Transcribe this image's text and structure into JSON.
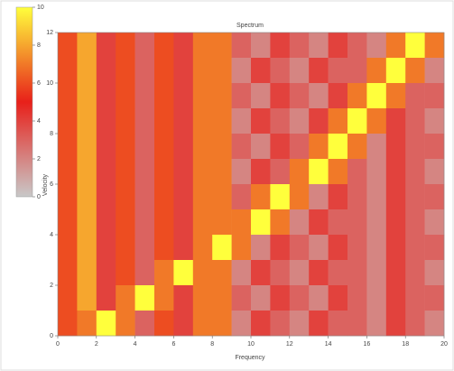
{
  "chart_data": {
    "type": "heatmap",
    "title": "Spectrum",
    "x_label": "Frequency",
    "y_label": "Velocity",
    "xlim": [
      0,
      20
    ],
    "ylim": [
      0,
      12
    ],
    "xticks": [
      0,
      2,
      4,
      6,
      8,
      10,
      12,
      14,
      16,
      18,
      20
    ],
    "yticks": [
      0,
      2,
      4,
      6,
      8,
      10,
      12
    ],
    "zlim": [
      0,
      10
    ],
    "zticks": [
      0,
      2,
      4,
      6,
      8,
      10
    ],
    "colormap": [
      "#c8c8c8",
      "#e8201a",
      "#ffff3c"
    ],
    "z": [
      [
        6,
        8,
        4,
        6,
        3,
        6,
        4,
        7,
        7,
        3,
        2,
        4,
        3,
        2,
        4,
        3,
        2,
        7,
        10,
        7
      ],
      [
        6,
        8,
        4,
        6,
        3,
        6,
        4,
        7,
        7,
        2,
        4,
        3,
        2,
        4,
        3,
        3,
        7,
        10,
        7,
        2
      ],
      [
        6,
        8,
        4,
        6,
        3,
        6,
        4,
        7,
        7,
        3,
        2,
        4,
        3,
        2,
        4,
        7,
        10,
        7,
        3,
        3
      ],
      [
        6,
        8,
        4,
        6,
        3,
        6,
        4,
        7,
        7,
        2,
        4,
        3,
        2,
        4,
        7,
        10,
        7,
        4,
        3,
        2
      ],
      [
        6,
        8,
        4,
        6,
        3,
        6,
        4,
        7,
        7,
        3,
        2,
        4,
        3,
        7,
        10,
        7,
        2,
        4,
        3,
        3
      ],
      [
        6,
        8,
        4,
        6,
        3,
        6,
        4,
        7,
        7,
        2,
        4,
        3,
        7,
        10,
        7,
        3,
        2,
        4,
        3,
        2
      ],
      [
        6,
        8,
        4,
        6,
        3,
        6,
        4,
        7,
        7,
        3,
        7,
        10,
        7,
        2,
        4,
        3,
        2,
        4,
        3,
        3
      ],
      [
        6,
        8,
        4,
        6,
        3,
        6,
        4,
        7,
        7,
        7,
        10,
        7,
        2,
        4,
        3,
        3,
        2,
        4,
        3,
        2
      ],
      [
        6,
        8,
        4,
        6,
        3,
        6,
        4,
        7,
        10,
        7,
        2,
        4,
        3,
        2,
        4,
        3,
        2,
        4,
        3,
        3
      ],
      [
        6,
        8,
        4,
        6,
        3,
        7,
        10,
        7,
        7,
        2,
        4,
        3,
        2,
        4,
        3,
        3,
        2,
        4,
        3,
        2
      ],
      [
        6,
        8,
        4,
        7,
        10,
        7,
        4,
        7,
        7,
        3,
        2,
        4,
        3,
        2,
        4,
        3,
        2,
        4,
        3,
        3
      ],
      [
        6,
        7,
        10,
        7,
        3,
        6,
        4,
        7,
        7,
        2,
        4,
        3,
        2,
        4,
        3,
        3,
        2,
        4,
        3,
        2
      ]
    ]
  }
}
